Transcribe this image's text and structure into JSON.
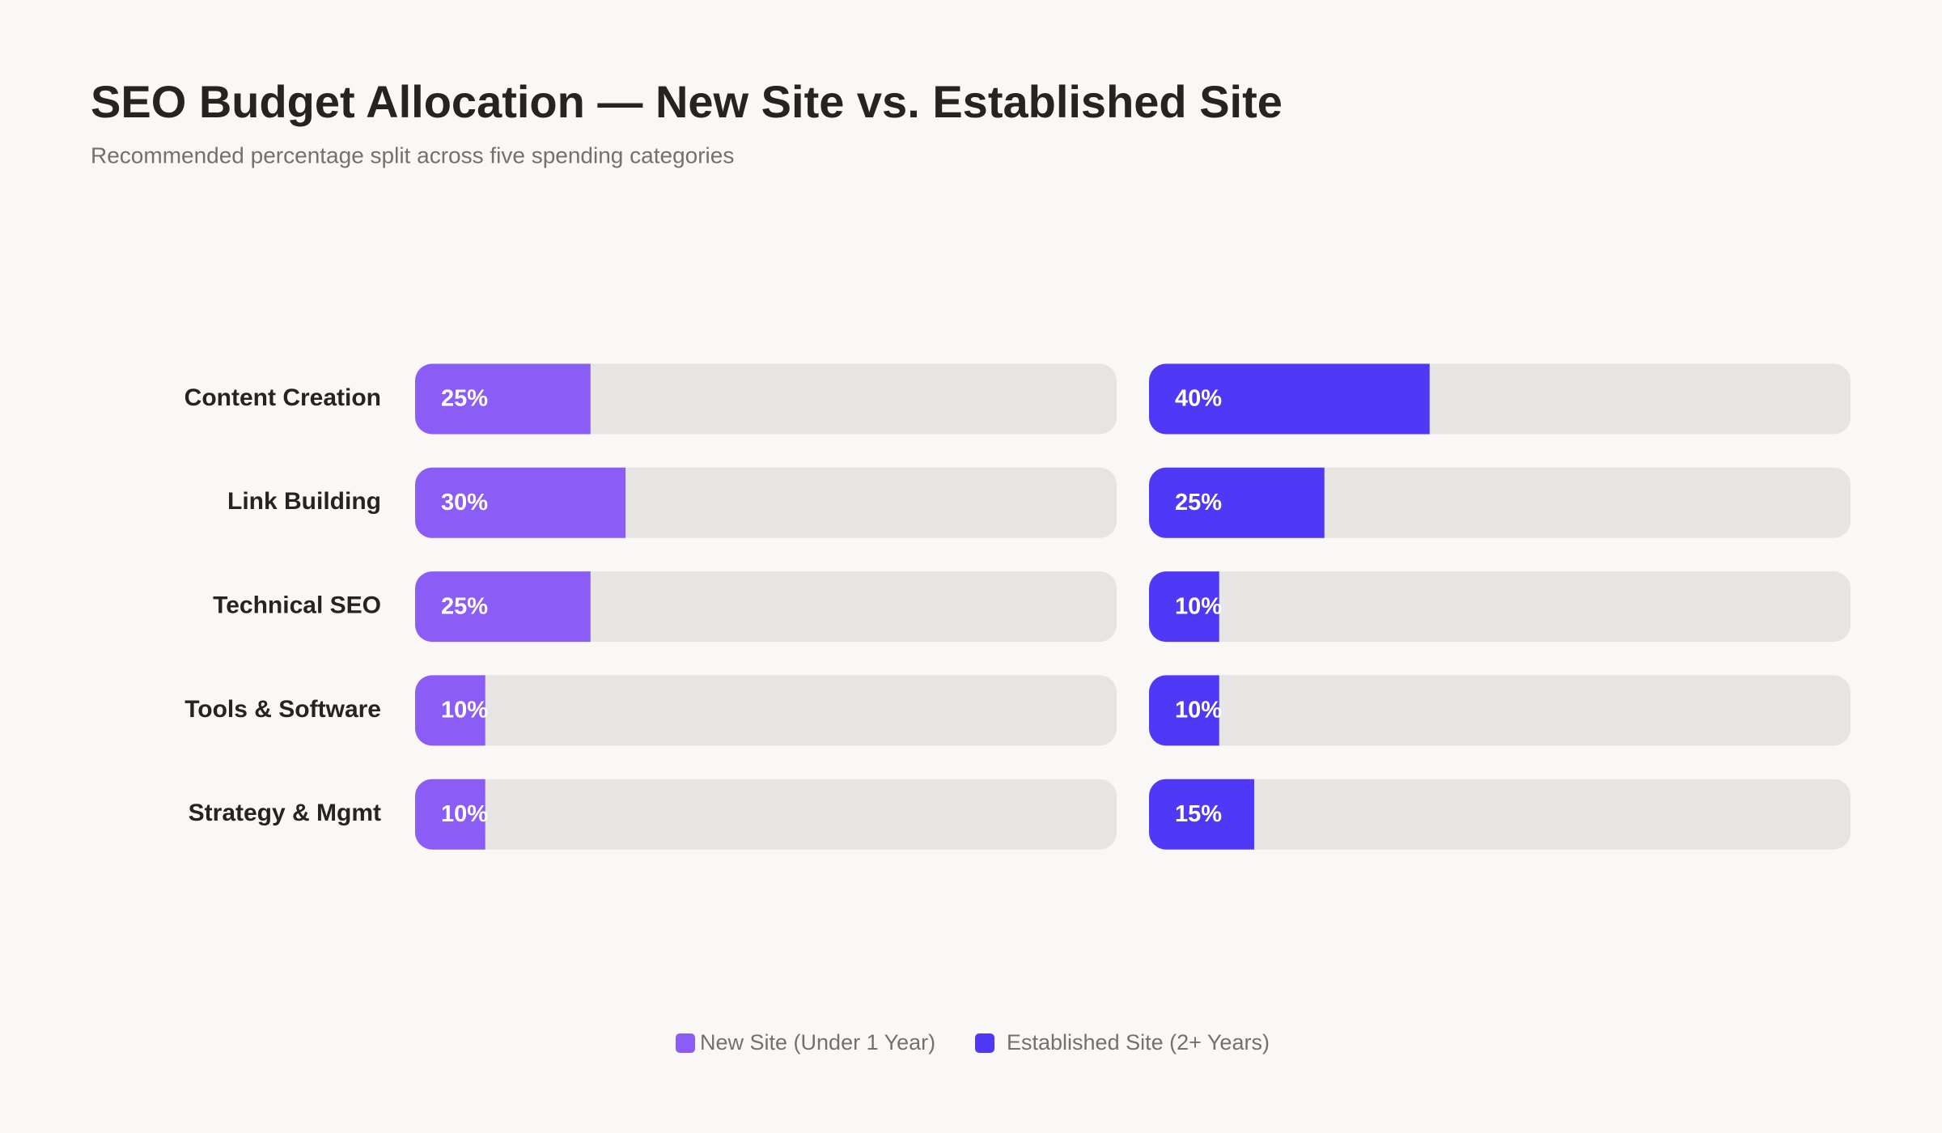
{
  "chart_data": {
    "type": "bar",
    "orientation": "horizontal",
    "title": "SEO Budget Allocation — New Site vs. Established Site",
    "subtitle": "Recommended percentage split across five spending categories",
    "categories": [
      "Content Creation",
      "Link Building",
      "Technical SEO",
      "Tools & Software",
      "Strategy & Mgmt"
    ],
    "series": [
      {
        "name": "New Site (Under 1 Year)",
        "color": "#8b5cf6",
        "values": [
          25,
          30,
          25,
          10,
          10
        ],
        "value_labels": [
          "25%",
          "30%",
          "25%",
          "10%",
          "10%"
        ]
      },
      {
        "name": "Established Site (2+ Years)",
        "color": "#4f38f6",
        "values": [
          40,
          25,
          10,
          10,
          15
        ],
        "value_labels": [
          "40%",
          "25%",
          "10%",
          "10%",
          "15%"
        ]
      }
    ],
    "xlim": [
      0,
      100
    ],
    "legend": "bottom"
  }
}
